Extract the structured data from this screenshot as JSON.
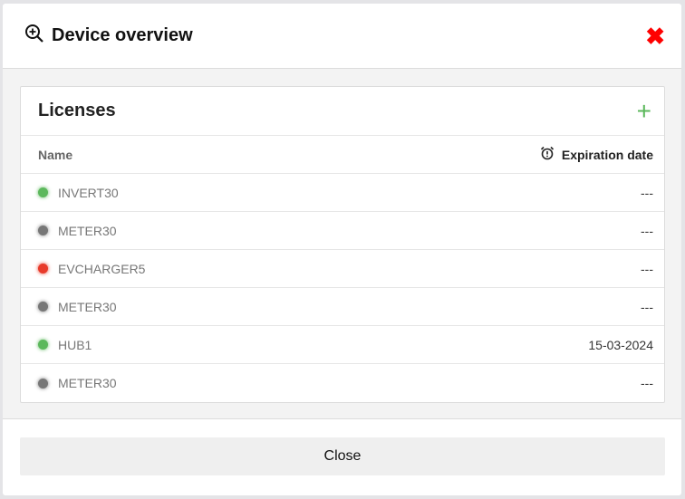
{
  "modal": {
    "title": "Device overview",
    "title_icon": "zoom-in-icon",
    "close_icon": "close-icon"
  },
  "card": {
    "title": "Licenses",
    "add_icon": "plus-icon",
    "columns": {
      "name": "Name",
      "expiration": "Expiration date",
      "expiration_icon": "alarm-clock-icon"
    },
    "rows": [
      {
        "name": "INVERT30",
        "status_color": "#5cb85c",
        "expiration": "---"
      },
      {
        "name": "METER30",
        "status_color": "#777777",
        "expiration": "---"
      },
      {
        "name": "EVCHARGER5",
        "status_color": "#e83a2a",
        "expiration": "---"
      },
      {
        "name": "METER30",
        "status_color": "#777777",
        "expiration": "---"
      },
      {
        "name": "HUB1",
        "status_color": "#5cb85c",
        "expiration": "15-03-2024"
      },
      {
        "name": "METER30",
        "status_color": "#777777",
        "expiration": "---"
      }
    ]
  },
  "footer": {
    "close_label": "Close"
  }
}
